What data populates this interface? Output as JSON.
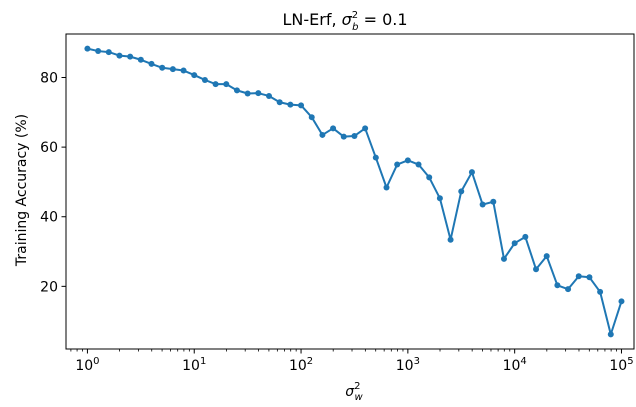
{
  "chart_data": {
    "type": "line",
    "title": "LN-Erf, σ_b² = 0.1",
    "title_parts": {
      "prefix": "LN-Erf, ",
      "symbol": "σ",
      "sub": "b",
      "sup": "2",
      "suffix": " = 0.1"
    },
    "xlabel": "σ_w²",
    "xlabel_parts": {
      "symbol": "σ",
      "sub": "w",
      "sup": "2"
    },
    "ylabel": "Training Accuracy (%)",
    "xscale": "log",
    "xlim": [
      0.63,
      131000
    ],
    "ylim": [
      2,
      92.5
    ],
    "x_ticks": [
      {
        "value": 1,
        "base": "10",
        "exp": "0"
      },
      {
        "value": 10,
        "base": "10",
        "exp": "1"
      },
      {
        "value": 100,
        "base": "10",
        "exp": "2"
      },
      {
        "value": 1000,
        "base": "10",
        "exp": "3"
      },
      {
        "value": 10000,
        "base": "10",
        "exp": "4"
      },
      {
        "value": 100000,
        "base": "10",
        "exp": "5"
      }
    ],
    "y_ticks": [
      20,
      40,
      60,
      80
    ],
    "grid": false,
    "series_color": "#1f77b4",
    "series": [
      {
        "x": [
          1.0,
          1.259,
          1.585,
          1.995,
          2.512,
          3.162,
          3.981,
          5.012,
          6.31,
          7.943,
          10.0,
          12.59,
          15.85,
          19.95,
          25.12,
          31.62,
          39.81,
          50.12,
          63.1,
          79.43,
          100.0,
          125.9,
          158.5,
          199.5,
          251.2,
          316.2,
          398.1,
          501.2,
          631.0,
          794.3,
          1000,
          1259,
          1585,
          1995,
          2512,
          3162,
          3981,
          5012,
          6310,
          7943,
          10000,
          12590,
          15850,
          19950,
          25120,
          31620,
          39810,
          50120,
          63100,
          79430,
          100000
        ],
        "y": [
          88.3,
          87.6,
          87.3,
          86.3,
          86.0,
          85.1,
          83.9,
          82.8,
          82.4,
          82.0,
          80.7,
          79.3,
          78.1,
          78.1,
          76.3,
          75.4,
          75.5,
          74.7,
          72.9,
          72.2,
          72.0,
          68.6,
          63.5,
          65.4,
          63.0,
          63.2,
          65.4,
          57.0,
          48.4,
          55.0,
          56.2,
          55.0,
          51.3,
          45.3,
          33.4,
          47.3,
          52.8,
          43.5,
          44.3,
          27.9,
          32.4,
          34.2,
          24.9,
          28.7,
          20.3,
          19.2,
          22.9,
          22.6,
          18.4,
          6.2,
          15.7
        ]
      }
    ]
  }
}
